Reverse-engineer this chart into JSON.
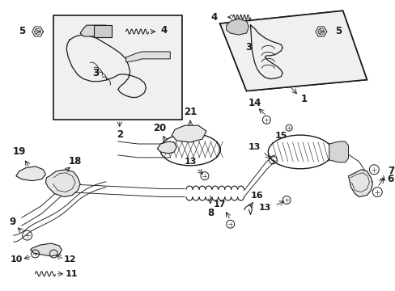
{
  "bg_color": "#ffffff",
  "line_color": "#1a1a1a",
  "figsize": [
    4.89,
    3.6
  ],
  "dpi": 100,
  "font_size": 8.5,
  "lw_main": 1.0,
  "lw_thin": 0.65,
  "lw_thick": 1.4
}
